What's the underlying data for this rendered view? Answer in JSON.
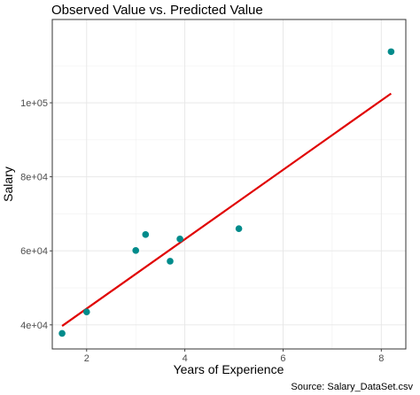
{
  "chart_data": {
    "type": "scatter",
    "title": "Observed Value vs. Predicted Value",
    "xlabel": "Years of Experience",
    "ylabel": "Salary",
    "caption": "Source: Salary_DataSet.csv",
    "xlim": [
      1.3,
      8.5
    ],
    "ylim": [
      33500,
      122500
    ],
    "x_ticks": [
      2,
      4,
      6,
      8
    ],
    "x_tick_labels": [
      "2",
      "4",
      "6",
      "8"
    ],
    "y_ticks": [
      40000,
      60000,
      80000,
      100000
    ],
    "y_tick_labels": [
      "4e+04",
      "6e+04",
      "8e+04",
      "1e+05"
    ],
    "grid": true,
    "series": [
      {
        "type": "scatter",
        "color": "#008b8b",
        "points": [
          {
            "x": 1.5,
            "y": 37700
          },
          {
            "x": 2.0,
            "y": 43500
          },
          {
            "x": 3.0,
            "y": 60100
          },
          {
            "x": 3.2,
            "y": 64400
          },
          {
            "x": 3.7,
            "y": 57200
          },
          {
            "x": 3.9,
            "y": 63200
          },
          {
            "x": 5.1,
            "y": 66000
          },
          {
            "x": 8.2,
            "y": 113800
          }
        ]
      },
      {
        "type": "line",
        "color": "#e00000",
        "points": [
          {
            "x": 1.5,
            "y": 39700
          },
          {
            "x": 8.2,
            "y": 102500
          }
        ]
      }
    ]
  }
}
